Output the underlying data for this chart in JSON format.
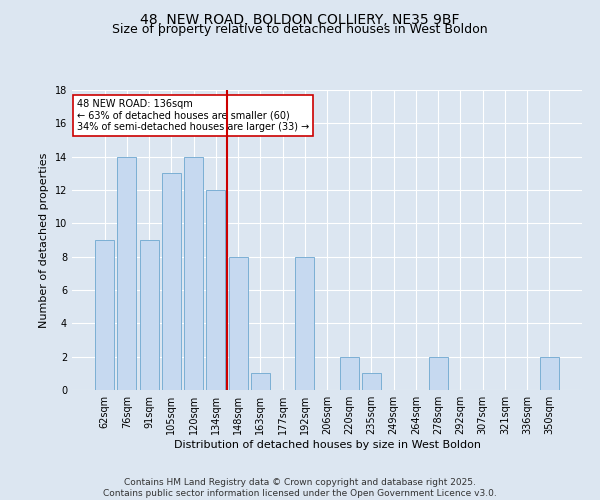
{
  "title1": "48, NEW ROAD, BOLDON COLLIERY, NE35 9BF",
  "title2": "Size of property relative to detached houses in West Boldon",
  "xlabel": "Distribution of detached houses by size in West Boldon",
  "ylabel": "Number of detached properties",
  "categories": [
    "62sqm",
    "76sqm",
    "91sqm",
    "105sqm",
    "120sqm",
    "134sqm",
    "148sqm",
    "163sqm",
    "177sqm",
    "192sqm",
    "206sqm",
    "220sqm",
    "235sqm",
    "249sqm",
    "264sqm",
    "278sqm",
    "292sqm",
    "307sqm",
    "321sqm",
    "336sqm",
    "350sqm"
  ],
  "values": [
    9,
    14,
    9,
    13,
    14,
    12,
    8,
    1,
    0,
    8,
    0,
    2,
    1,
    0,
    0,
    2,
    0,
    0,
    0,
    0,
    2
  ],
  "bar_color": "#c6d9f0",
  "bar_edge_color": "#7bafd4",
  "vline_index": 5,
  "vline_color": "#cc0000",
  "annotation_text": "48 NEW ROAD: 136sqm\n← 63% of detached houses are smaller (60)\n34% of semi-detached houses are larger (33) →",
  "annotation_box_color": "#ffffff",
  "annotation_box_edge": "#cc0000",
  "ylim": [
    0,
    18
  ],
  "yticks": [
    0,
    2,
    4,
    6,
    8,
    10,
    12,
    14,
    16,
    18
  ],
  "footer": "Contains HM Land Registry data © Crown copyright and database right 2025.\nContains public sector information licensed under the Open Government Licence v3.0.",
  "background_color": "#dce6f1",
  "plot_bg_color": "#dce6f1",
  "title_fontsize": 10,
  "subtitle_fontsize": 9,
  "axis_label_fontsize": 8,
  "tick_fontsize": 7,
  "annotation_fontsize": 7,
  "footer_fontsize": 6.5
}
